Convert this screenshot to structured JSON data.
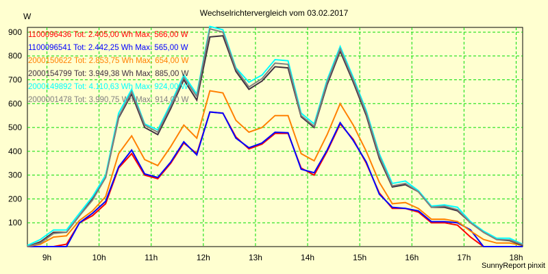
{
  "chart_data": {
    "type": "line",
    "title": "Wechselrichtervergleich vom 03.02.2017",
    "ylabel": "W",
    "xlabel": "",
    "ylim": [
      0,
      920
    ],
    "xlim": [
      8.625,
      18.125
    ],
    "yticks": [
      100,
      200,
      300,
      400,
      500,
      600,
      700,
      800,
      900
    ],
    "xticks": [
      9,
      10,
      11,
      12,
      13,
      14,
      15,
      16,
      17,
      18
    ],
    "xtick_labels": [
      "9h",
      "10h",
      "11h",
      "12h",
      "13h",
      "14h",
      "15h",
      "16h",
      "17h",
      "18h"
    ],
    "grid": true,
    "legend_placement": "top-left",
    "x_start": 8.625,
    "x_step_hours": 0.25,
    "series": [
      {
        "name": "1100096436",
        "tot": "2.405,00",
        "max": "566,00",
        "color": "#ff0000",
        "values": [
          0,
          0,
          0,
          10,
          100,
          130,
          180,
          330,
          390,
          300,
          285,
          350,
          435,
          390,
          565,
          560,
          460,
          410,
          430,
          475,
          475,
          330,
          300,
          400,
          515,
          450,
          350,
          225,
          160,
          160,
          145,
          100,
          100,
          90,
          40,
          0,
          0,
          0,
          0
        ]
      },
      {
        "name": "1100096541",
        "tot": "2.442,25",
        "max": "565,00",
        "color": "#0000ff",
        "values": [
          0,
          0,
          0,
          0,
          100,
          140,
          190,
          335,
          405,
          305,
          290,
          355,
          440,
          385,
          565,
          560,
          455,
          415,
          435,
          480,
          478,
          325,
          310,
          405,
          520,
          445,
          355,
          220,
          165,
          160,
          150,
          105,
          105,
          100,
          70,
          0,
          0,
          0,
          0
        ]
      },
      {
        "name": "2000150622",
        "tot": "2.853,75",
        "max": "654,00",
        "color": "#ff8000",
        "values": [
          0,
          10,
          40,
          45,
          110,
          150,
          210,
          390,
          465,
          365,
          340,
          420,
          510,
          455,
          654,
          645,
          530,
          480,
          500,
          550,
          550,
          390,
          360,
          470,
          600,
          510,
          400,
          270,
          180,
          185,
          160,
          115,
          115,
          105,
          65,
          30,
          15,
          15,
          5
        ]
      },
      {
        "name": "2000154799",
        "tot": "3.949,38",
        "max": "885,00",
        "color": "#403040",
        "values": [
          0,
          20,
          60,
          60,
          130,
          200,
          290,
          540,
          640,
          500,
          470,
          580,
          700,
          615,
          880,
          885,
          735,
          660,
          695,
          755,
          750,
          545,
          500,
          680,
          820,
          690,
          550,
          370,
          250,
          260,
          230,
          165,
          165,
          150,
          100,
          60,
          30,
          25,
          5
        ]
      },
      {
        "name": "2000149892",
        "tot": "4.110,63",
        "max": "924,00",
        "color": "#00ffff",
        "values": [
          5,
          30,
          70,
          70,
          140,
          210,
          300,
          560,
          660,
          515,
          490,
          600,
          720,
          640,
          924,
          910,
          750,
          690,
          720,
          785,
          780,
          560,
          515,
          700,
          840,
          710,
          570,
          390,
          265,
          275,
          235,
          170,
          175,
          165,
          105,
          65,
          35,
          35,
          10
        ]
      },
      {
        "name": "2000001478",
        "tot": "3.990,75",
        "max": "914,00",
        "color": "#808080",
        "values": [
          0,
          15,
          55,
          60,
          130,
          195,
          290,
          545,
          650,
          510,
          480,
          590,
          710,
          630,
          914,
          900,
          745,
          670,
          705,
          770,
          765,
          550,
          505,
          690,
          830,
          700,
          560,
          380,
          255,
          265,
          230,
          165,
          170,
          155,
          100,
          60,
          30,
          28,
          8
        ]
      }
    ],
    "legend_tot_label": "Tot:",
    "legend_wh_unit": "Wh",
    "legend_max_label": "Max:",
    "legend_w_unit": "W"
  },
  "footer": "SunnyReport pinxit"
}
